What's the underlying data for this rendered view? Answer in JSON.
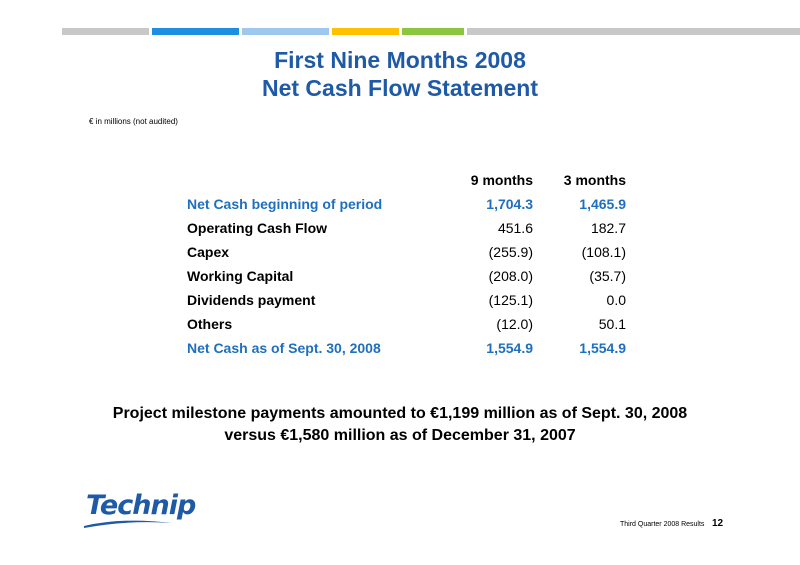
{
  "header": {
    "bar_colors": [
      "#c8c8c8",
      "#1e8fe0",
      "#9ec8ee",
      "#ffc000",
      "#8cc63f",
      "#c8c8c8"
    ],
    "title_line1": "First Nine Months 2008",
    "title_line2": "Net Cash Flow Statement",
    "note": "€ in millions (not audited)"
  },
  "table": {
    "col_9m": "9 months",
    "col_3m": "3 months",
    "rows": [
      {
        "label": "Net Cash beginning of period",
        "m9": "1,704.3",
        "m3": "1,465.9"
      },
      {
        "label": "Operating Cash Flow",
        "m9": "451.6",
        "m3": "182.7"
      },
      {
        "label": "Capex",
        "m9": "(255.9)",
        "m3": "(108.1)"
      },
      {
        "label": "Working Capital",
        "m9": "(208.0)",
        "m3": "(35.7)"
      },
      {
        "label": "Dividends payment",
        "m9": "(125.1)",
        "m3": "0.0"
      },
      {
        "label": "Others",
        "m9": "(12.0)",
        "m3": "50.1"
      },
      {
        "label": "Net Cash as of Sept. 30, 2008",
        "m9": "1,554.9",
        "m3": "1,554.9"
      }
    ]
  },
  "footnote": {
    "line1": "Project milestone payments amounted to €1,199 million as of Sept. 30, 2008",
    "line2": "versus €1,580 million as of December 31, 2007"
  },
  "footer": {
    "logo": "Technip",
    "caption": "Third Quarter 2008 Results",
    "page": "12"
  },
  "colors": {
    "title": "#1f5aa6",
    "highlight": "#1f6fbf"
  }
}
